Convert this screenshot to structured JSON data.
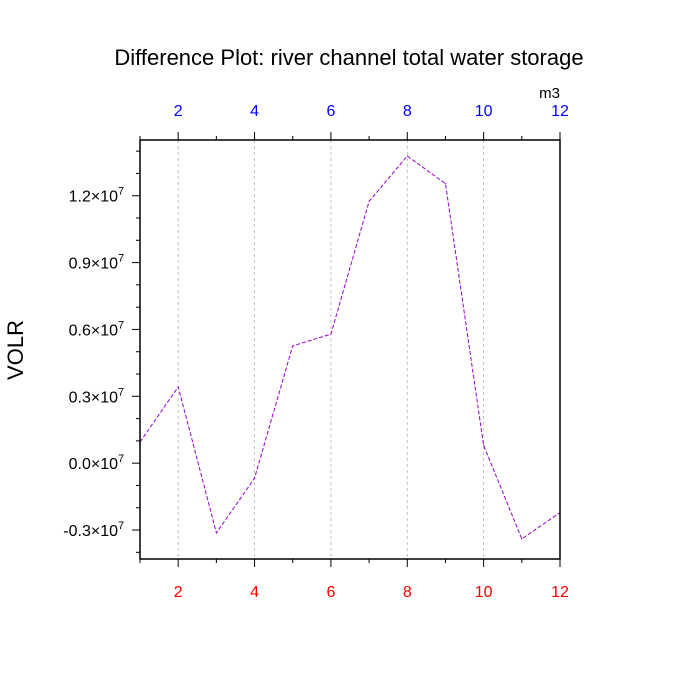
{
  "chart_data": {
    "type": "line",
    "title": "Difference Plot: river channel total water storage",
    "units_label": "m3",
    "ylabel": "VOLR",
    "xlabel": "",
    "xlim": [
      1,
      12
    ],
    "ylim": [
      -4300000,
      14500000
    ],
    "x_ticks": [
      2,
      4,
      6,
      8,
      10,
      12
    ],
    "x_tick_labels": [
      "2",
      "4",
      "6",
      "8",
      "10",
      "12"
    ],
    "y_ticks": [
      -3000000,
      0,
      3000000,
      6000000,
      9000000,
      12000000
    ],
    "y_tick_labels": [
      "-0.3",
      "0.0",
      "0.3",
      "0.6",
      "0.9",
      "1.2"
    ],
    "y_tick_suffix": "×10",
    "y_tick_exponent": "7",
    "x_grid": true,
    "y_grid": false,
    "colors": {
      "bottom_axis_labels": "#ff0000",
      "top_axis_labels": "#0000ff",
      "series_line": "#9900cc",
      "grid": "#b4b4b4"
    },
    "series": [
      {
        "x": [
          1,
          2,
          3,
          4,
          5,
          6,
          7,
          8,
          9,
          10,
          11,
          12
        ],
        "values": [
          950000,
          3420000,
          -3130000,
          -680000,
          5260000,
          5790000,
          11750000,
          13780000,
          12540000,
          800000,
          -3400000,
          -2220000
        ]
      }
    ]
  }
}
